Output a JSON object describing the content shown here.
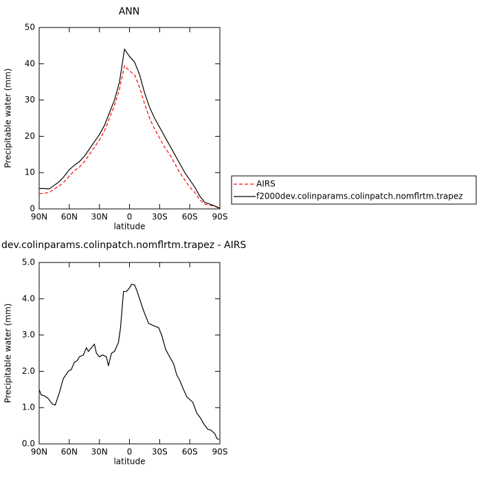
{
  "chart_data": [
    {
      "type": "line",
      "title": "ANN",
      "x_label": "latitude",
      "y_label": "Precipitable water (mm)",
      "xlim": [
        90,
        -90
      ],
      "ylim": [
        0,
        50
      ],
      "xticks": [
        {
          "value": 90,
          "label": "90N"
        },
        {
          "value": 60,
          "label": "60N"
        },
        {
          "value": 30,
          "label": "30N"
        },
        0,
        {
          "value": -30,
          "label": "30S"
        },
        {
          "value": -60,
          "label": "60S"
        },
        {
          "value": -90,
          "label": "90S"
        }
      ],
      "yticks": [
        0,
        10,
        20,
        30,
        40,
        50
      ],
      "x": [
        90,
        85,
        80,
        75,
        70,
        65,
        60,
        55,
        50,
        45,
        40,
        35,
        30,
        25,
        20,
        15,
        10,
        5,
        0,
        -5,
        -10,
        -15,
        -20,
        -25,
        -30,
        -35,
        -40,
        -45,
        -50,
        -55,
        -60,
        -65,
        -70,
        -75,
        -80,
        -85,
        -90
      ],
      "series": [
        {
          "name": "AIRS",
          "color": "#ff0000",
          "line_style": "dashed",
          "values": [
            4.2,
            4.3,
            4.5,
            5.5,
            6.3,
            7.5,
            9,
            10.5,
            11.5,
            13,
            15,
            17,
            19,
            21.5,
            25,
            28.5,
            33,
            39.5,
            38,
            37,
            33.5,
            29,
            25,
            22,
            19.5,
            17,
            15,
            12.5,
            10,
            8,
            6,
            4.5,
            2.5,
            1.3,
            1,
            0.7,
            0.1
          ]
        },
        {
          "name": "f2000dev.colinparams.colinpatch.nomflrtm.trapez",
          "color": "#000000",
          "line_style": "solid",
          "values": [
            5.6,
            5.6,
            5.5,
            6.5,
            7.5,
            9,
            10.8,
            12,
            13,
            14.5,
            16.5,
            18.5,
            20.5,
            23,
            26.5,
            30,
            35,
            44,
            42,
            40.5,
            37,
            32,
            28,
            25,
            22.5,
            20,
            17.5,
            15,
            12.5,
            10,
            8,
            6,
            3.5,
            1.8,
            1.3,
            0.8,
            0.2
          ]
        }
      ],
      "legend": "right"
    },
    {
      "type": "line",
      "title": "dev.colinparams.colinpatch.nomflrtm.trapez - AIRS",
      "x_label": "latitude",
      "y_label": "Precipitable water (mm)",
      "xlim": [
        90,
        -90
      ],
      "ylim": [
        0,
        5
      ],
      "xticks": [
        {
          "value": 90,
          "label": "90N"
        },
        {
          "value": 60,
          "label": "60N"
        },
        {
          "value": 30,
          "label": "30N"
        },
        0,
        {
          "value": -30,
          "label": "30S"
        },
        {
          "value": -60,
          "label": "60S"
        },
        {
          "value": -90,
          "label": "90S"
        }
      ],
      "yticks": [
        {
          "value": 0,
          "label": "0.0"
        },
        {
          "value": 1,
          "label": "1.0"
        },
        {
          "value": 2,
          "label": "2.0"
        },
        {
          "value": 3,
          "label": "3.0"
        },
        {
          "value": 4,
          "label": "4.0"
        },
        {
          "value": 5,
          "label": "5.0"
        }
      ],
      "x": [
        90,
        88,
        85,
        81,
        77,
        74,
        70,
        66,
        61,
        58,
        55,
        52,
        50,
        46,
        43,
        41,
        38,
        35,
        33,
        30,
        27,
        23,
        21,
        18,
        15,
        11,
        9,
        6,
        3,
        0,
        -2,
        -5,
        -7,
        -10,
        -13,
        -15,
        -19,
        -23,
        -29,
        -32,
        -36,
        -40,
        -44,
        -47,
        -50,
        -53,
        -57,
        -63,
        -67,
        -71,
        -74,
        -78,
        -81,
        -85,
        -87,
        -89
      ],
      "series": [
        {
          "color": "#000000",
          "line_style": "solid",
          "values": [
            1.5,
            1.35,
            1.33,
            1.25,
            1.1,
            1.07,
            1.4,
            1.8,
            2.0,
            2.05,
            2.25,
            2.3,
            2.4,
            2.45,
            2.65,
            2.55,
            2.65,
            2.75,
            2.5,
            2.4,
            2.45,
            2.4,
            2.15,
            2.5,
            2.55,
            2.8,
            3.2,
            4.2,
            4.2,
            4.3,
            4.4,
            4.38,
            4.25,
            4.0,
            3.75,
            3.6,
            3.32,
            3.27,
            3.2,
            3.0,
            2.6,
            2.4,
            2.2,
            1.9,
            1.75,
            1.55,
            1.3,
            1.15,
            0.85,
            0.7,
            0.55,
            0.4,
            0.38,
            0.28,
            0.15,
            0.12
          ]
        }
      ]
    }
  ]
}
